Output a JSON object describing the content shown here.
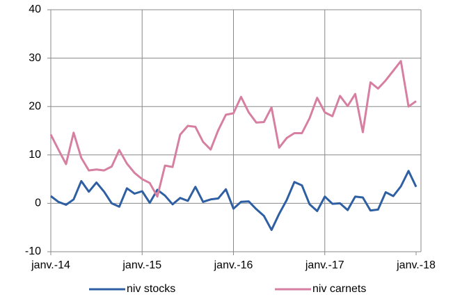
{
  "chart_data": {
    "type": "line",
    "categories": [
      "janv.-14",
      null,
      null,
      null,
      null,
      null,
      null,
      null,
      null,
      null,
      null,
      null,
      "janv.-15",
      null,
      null,
      null,
      null,
      null,
      null,
      null,
      null,
      null,
      null,
      null,
      "janv.-16",
      null,
      null,
      null,
      null,
      null,
      null,
      null,
      null,
      null,
      null,
      null,
      "janv.-17",
      null,
      null,
      null,
      null,
      null,
      null,
      null,
      null,
      null,
      null,
      null,
      "janv.-18"
    ],
    "series": [
      {
        "name": "niv stocks",
        "color": "#2e5fa3",
        "values": [
          1.5,
          0.3,
          -0.3,
          0.8,
          4.6,
          2.4,
          4.3,
          2.4,
          0,
          -0.7,
          3.1,
          2.0,
          2.5,
          0.1,
          2.8,
          1.6,
          -0.2,
          1.1,
          0.5,
          3.4,
          0.3,
          0.8,
          1.0,
          2.9,
          -1.1,
          0.3,
          0.4,
          -1.2,
          -2.6,
          -5.5,
          -2.2,
          0.7,
          4.4,
          3.7,
          -0.2,
          -1.6,
          1.4,
          -0.1,
          0,
          -1.4,
          1.4,
          1.2,
          -1.5,
          -1.3,
          2.3,
          1.5,
          3.5,
          6.7,
          3.4
        ]
      },
      {
        "name": "niv carnets",
        "color": "#d67fa0",
        "values": [
          14.2,
          11.1,
          8.1,
          14.6,
          9.4,
          6.8,
          7.0,
          6.8,
          7.6,
          11.0,
          8.2,
          6.3,
          5.0,
          4.2,
          1.4,
          7.8,
          7.5,
          14.2,
          16.0,
          15.8,
          12.7,
          11.1,
          15.1,
          18.3,
          18.6,
          22.0,
          18.8,
          16.7,
          16.8,
          19.8,
          11.5,
          13.5,
          14.5,
          14.5,
          17.6,
          21.8,
          18.8,
          18.0,
          22.2,
          20.1,
          22.6,
          14.7,
          25.0,
          23.7,
          25.4,
          27.4,
          29.4,
          20.0,
          21.1
        ]
      }
    ],
    "ylim": [
      -10,
      40
    ],
    "yticks": [
      -10,
      0,
      10,
      20,
      30,
      40
    ],
    "grid": true,
    "legend": "bottom"
  }
}
